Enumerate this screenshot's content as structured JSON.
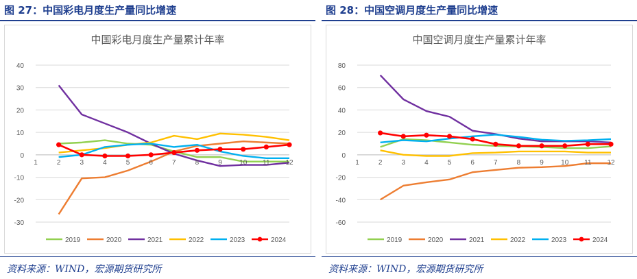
{
  "left": {
    "figure_title": "图 27：中国彩电月度生产量同比增速",
    "source": "资料来源：WIND，宏源期货研究所"
  },
  "right": {
    "figure_title": "图 28：中国空调月度生产量同比增速",
    "source": "资料来源：WIND，宏源期货研究所"
  },
  "colors": {
    "title_blue": "#1f3f8f",
    "2019": "#92d050",
    "2020": "#ed7d31",
    "2021": "#7030a0",
    "2022": "#ffc000",
    "2023": "#00b0f0",
    "2024": "#ff0000"
  },
  "chart_data": [
    {
      "type": "line",
      "title": "中国彩电月度生产量累计年率",
      "x": [
        1,
        2,
        3,
        4,
        5,
        6,
        7,
        8,
        9,
        10,
        11,
        12
      ],
      "ylim": [
        -30,
        40
      ],
      "yticks": [
        -30,
        -20,
        -10,
        0,
        10,
        20,
        30,
        40
      ],
      "grid": true,
      "legend": "bottom",
      "series": [
        {
          "name": "2019",
          "color": "#92d050",
          "values": [
            null,
            5,
            5.5,
            6.5,
            5,
            4.5,
            1.5,
            -1,
            -1,
            -3,
            -3,
            -3
          ]
        },
        {
          "name": "2020",
          "color": "#ed7d31",
          "values": [
            null,
            -26.5,
            -10.5,
            -10,
            -7,
            -3,
            1.5,
            4,
            5,
            6,
            5.5,
            5
          ]
        },
        {
          "name": "2021",
          "color": "#7030a0",
          "values": [
            null,
            31,
            18,
            14,
            10,
            5,
            0.5,
            -2.5,
            -5,
            -4.5,
            -4.5,
            -3.5
          ]
        },
        {
          "name": "2022",
          "color": "#ffc000",
          "values": [
            null,
            1,
            2,
            3,
            4.5,
            5.5,
            8.5,
            7,
            9.5,
            9,
            8,
            6.5
          ]
        },
        {
          "name": "2023",
          "color": "#00b0f0",
          "values": [
            null,
            -1,
            0,
            3.5,
            4.5,
            5,
            3.5,
            4.5,
            1.5,
            -0.5,
            -1.5,
            -1.5
          ]
        },
        {
          "name": "2024",
          "color": "#ff0000",
          "marker": true,
          "values": [
            null,
            4.5,
            0,
            -0.5,
            -0.5,
            0,
            1,
            2,
            2.5,
            2.5,
            3.5,
            4.5
          ]
        }
      ]
    },
    {
      "type": "line",
      "title": "中国空调月度生产量累计年率",
      "x": [
        1,
        2,
        3,
        4,
        5,
        6,
        7,
        8,
        9,
        10,
        11,
        12
      ],
      "ylim": [
        -60,
        80
      ],
      "yticks": [
        -60,
        -40,
        -20,
        0,
        20,
        40,
        60,
        80
      ],
      "grid": true,
      "legend": "bottom",
      "series": [
        {
          "name": "2019",
          "color": "#92d050",
          "values": [
            null,
            7,
            14,
            13,
            11,
            9,
            8,
            7.5,
            7,
            6,
            6,
            7.5
          ]
        },
        {
          "name": "2020",
          "color": "#ed7d31",
          "values": [
            null,
            -40,
            -27.5,
            -24.5,
            -22,
            -15.5,
            -13.5,
            -11.5,
            -11,
            -10,
            -7.5,
            -7.5
          ]
        },
        {
          "name": "2021",
          "color": "#7030a0",
          "values": [
            null,
            71,
            49.5,
            39,
            34,
            21.5,
            18.5,
            14.5,
            12,
            12,
            12,
            11
          ]
        },
        {
          "name": "2022",
          "color": "#ffc000",
          "values": [
            null,
            4,
            0,
            -1,
            -1,
            1.5,
            2,
            3,
            3,
            3,
            2,
            2
          ]
        },
        {
          "name": "2023",
          "color": "#00b0f0",
          "values": [
            null,
            11,
            13,
            12,
            14.5,
            16.5,
            18,
            16,
            13.5,
            12.5,
            13,
            14
          ]
        },
        {
          "name": "2024",
          "color": "#ff0000",
          "marker": true,
          "values": [
            null,
            19.5,
            16.5,
            17.5,
            16.5,
            14,
            9.5,
            8,
            8,
            8,
            9.5,
            9.5
          ]
        }
      ]
    }
  ]
}
